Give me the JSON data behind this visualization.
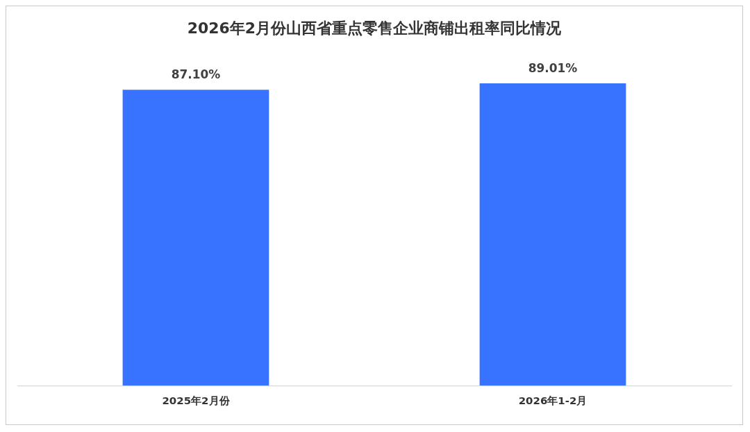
{
  "chart_data": {
    "type": "bar",
    "title": "2026年2月份山西省重点零售企业商铺出租率同比情况",
    "categories": [
      "2025年2月份",
      "2026年1-2月"
    ],
    "values": [
      87.1,
      89.01
    ],
    "value_labels": [
      "87.10%",
      "89.01%"
    ],
    "color": "#3773fe",
    "grid": false,
    "legend": false
  }
}
